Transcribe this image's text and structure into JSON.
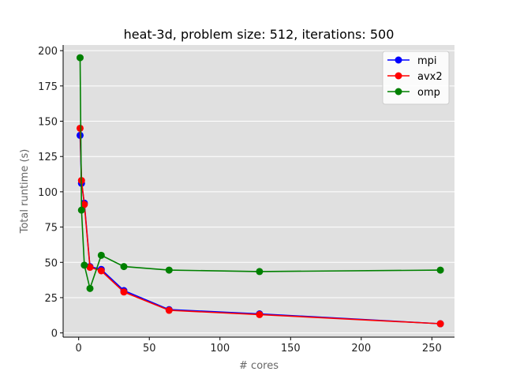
{
  "chart_data": {
    "type": "line",
    "title": "heat-3d, problem size: 512, iterations: 500",
    "xlabel": "# cores",
    "ylabel": "Total runtime (s)",
    "xlim": [
      -11,
      266
    ],
    "ylim": [
      -3,
      204
    ],
    "x_ticks": [
      0,
      50,
      100,
      150,
      200,
      250
    ],
    "x_tick_labels": [
      "0",
      "50",
      "100",
      "150",
      "200",
      "250"
    ],
    "y_ticks": [
      0,
      25,
      50,
      75,
      100,
      125,
      150,
      175,
      200
    ],
    "y_tick_labels": [
      "0",
      "25",
      "50",
      "75",
      "100",
      "125",
      "150",
      "175",
      "200"
    ],
    "grid": "horizontal",
    "background": "#e0e0e0",
    "legend_position": "top-right",
    "x": [
      1,
      2,
      4,
      8,
      16,
      32,
      64,
      128,
      256
    ],
    "series": [
      {
        "name": "mpi",
        "color": "#0000ff",
        "values": [
          140,
          106,
          92,
          47,
          45,
          30,
          16.5,
          13.5,
          6.5
        ]
      },
      {
        "name": "avx2",
        "color": "#ff0000",
        "values": [
          145,
          108,
          91,
          46.5,
          44,
          29,
          16,
          13,
          6.5
        ]
      },
      {
        "name": "omp",
        "color": "#008000",
        "values": [
          195,
          87,
          48,
          31.5,
          55,
          47,
          44.5,
          43.5,
          44.5
        ]
      }
    ]
  }
}
